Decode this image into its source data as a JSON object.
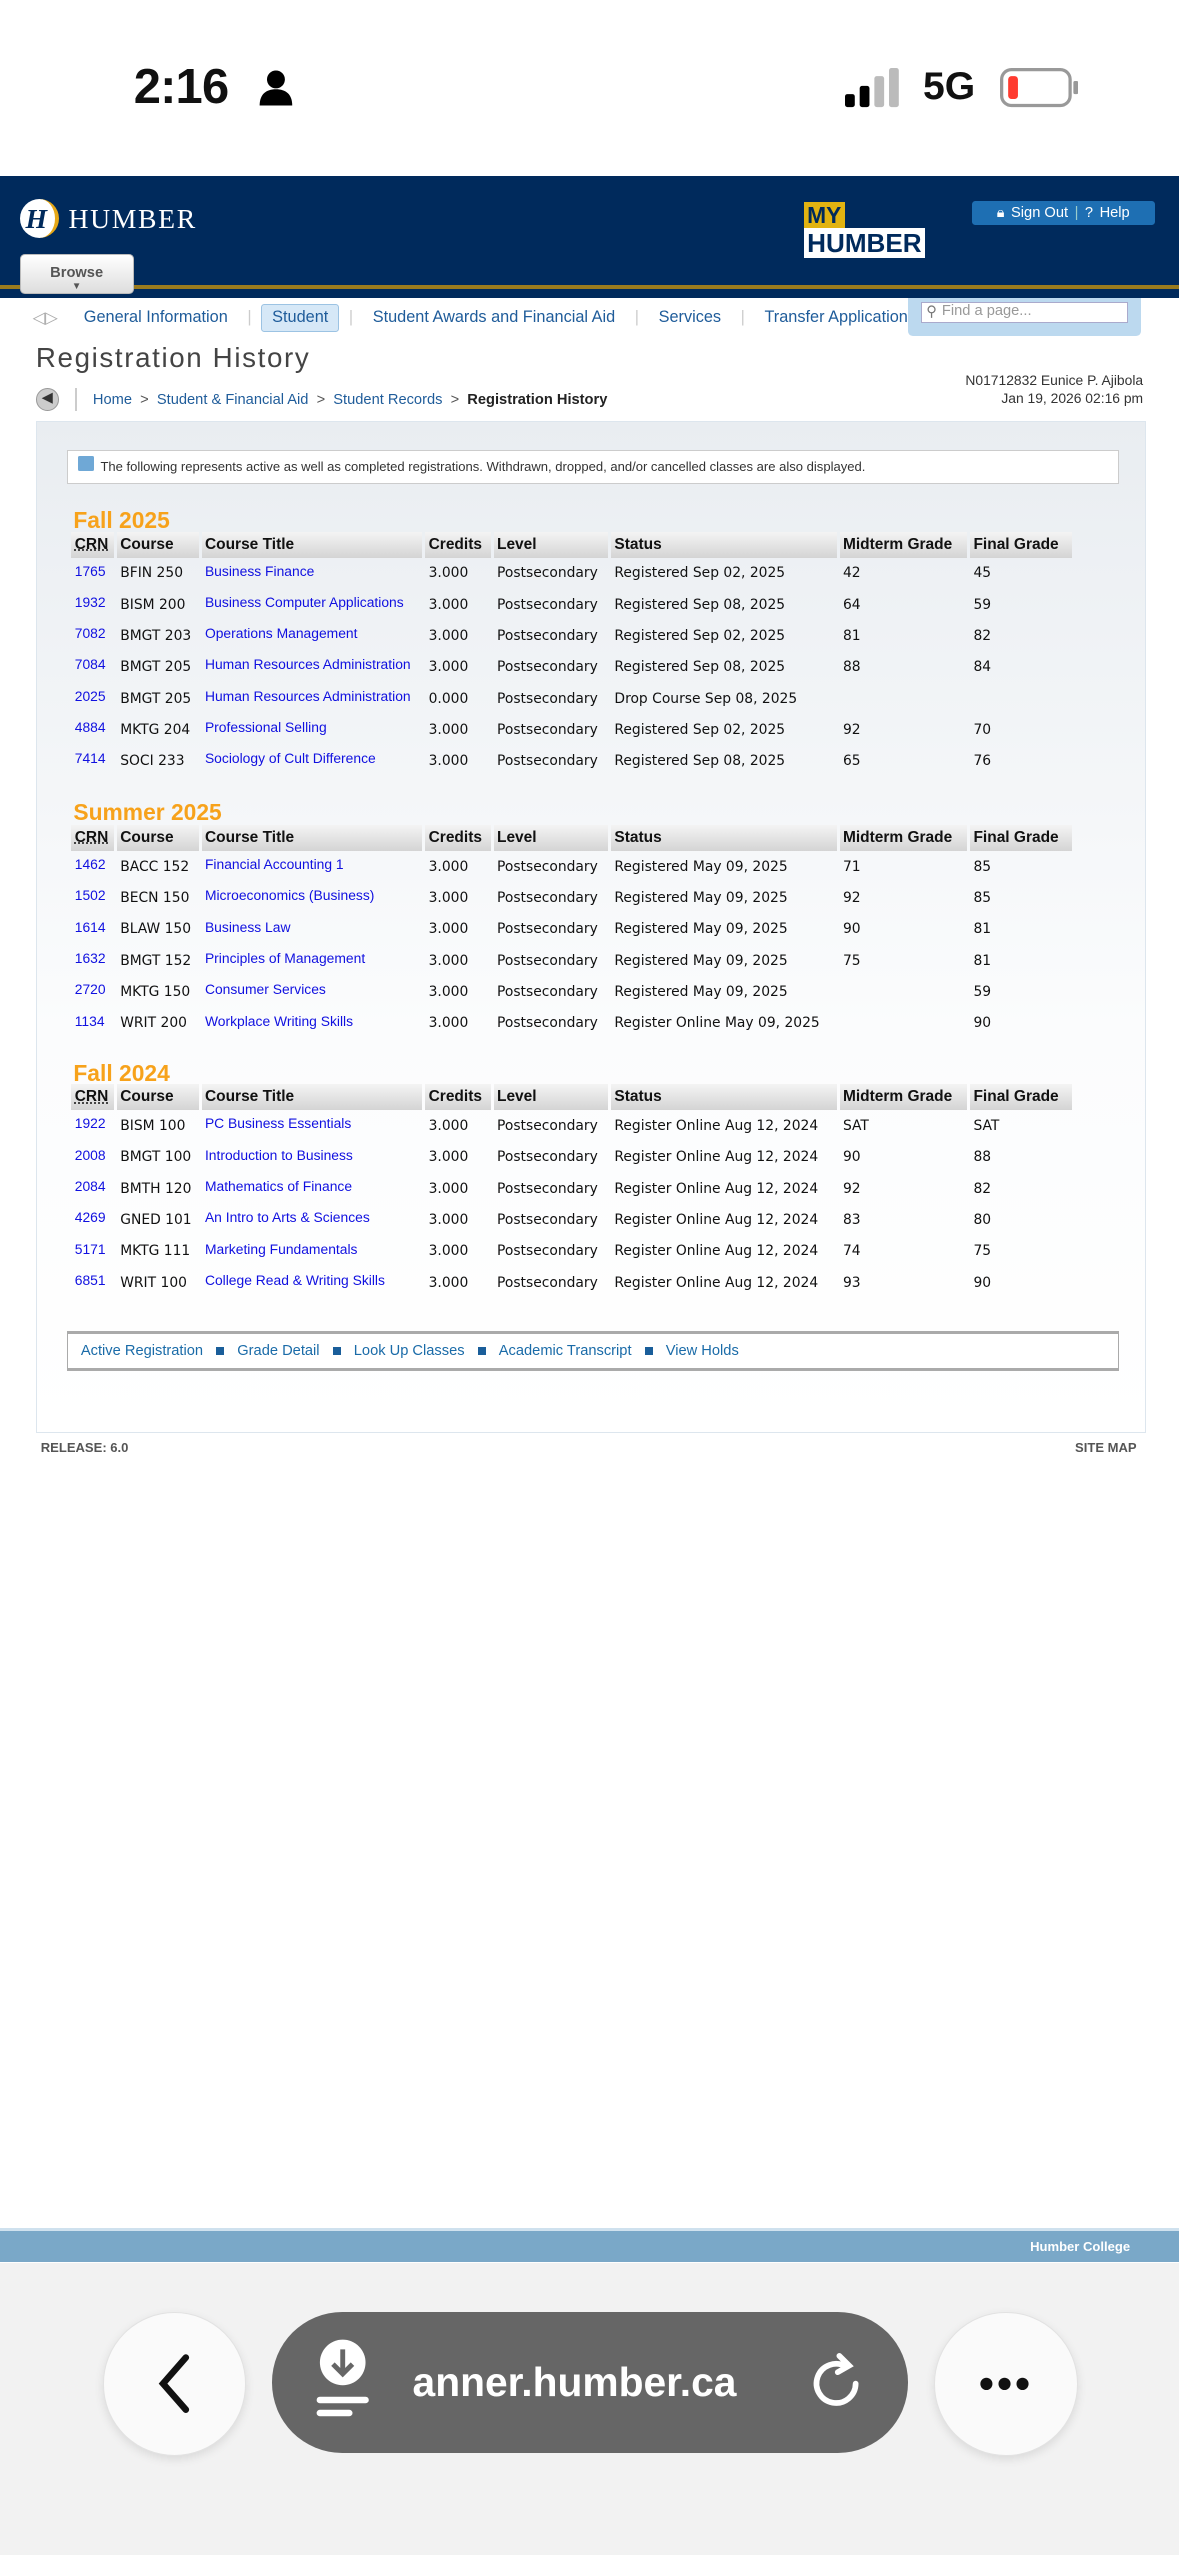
{
  "status_bar": {
    "time": "2:16",
    "network": "5G",
    "battery_level": 0.1,
    "battery_color": "#ff3b30"
  },
  "header": {
    "brand": "HUMBER",
    "browse_label": "Browse",
    "myhumber_top": "MY",
    "myhumber_bottom": "HUMBER",
    "sign_out": "Sign Out",
    "help": "Help",
    "colors": {
      "navy": "#002a5c",
      "gold": "#e2b311"
    }
  },
  "nav": {
    "items": [
      "General Information",
      "Student",
      "Student Awards and Financial Aid",
      "Services",
      "Transfer Application"
    ],
    "active": "Student",
    "search_placeholder": "Find a page..."
  },
  "page": {
    "title": "Registration History",
    "user": "N01712832 Eunice P. Ajibola",
    "datetime": "Jan 19, 2026 02:16 pm",
    "breadcrumb": [
      "Home",
      "Student & Financial Aid",
      "Student Records",
      "Registration History"
    ],
    "info": "The following represents active as well as completed registrations. Withdrawn, dropped, and/or cancelled classes are also displayed."
  },
  "columns": [
    "CRN",
    "Course",
    "Course Title",
    "Credits",
    "Level",
    "Status",
    "Midterm Grade",
    "Final Grade"
  ],
  "terms": [
    {
      "name": "Fall 2025",
      "rows": [
        [
          "1765",
          "BFIN 250",
          "Business Finance",
          "3.000",
          "Postsecondary",
          "Registered Sep 02, 2025",
          "42",
          "45"
        ],
        [
          "1932",
          "BISM 200",
          "Business Computer Applications",
          "3.000",
          "Postsecondary",
          "Registered Sep 08, 2025",
          "64",
          "59"
        ],
        [
          "7082",
          "BMGT 203",
          "Operations Management",
          "3.000",
          "Postsecondary",
          "Registered Sep 02, 2025",
          "81",
          "82"
        ],
        [
          "7084",
          "BMGT 205",
          "Human Resources Administration",
          "3.000",
          "Postsecondary",
          "Registered Sep 08, 2025",
          "88",
          "84"
        ],
        [
          "2025",
          "BMGT 205",
          "Human Resources Administration",
          "0.000",
          "Postsecondary",
          "Drop Course Sep 08, 2025",
          "",
          ""
        ],
        [
          "4884",
          "MKTG 204",
          "Professional Selling",
          "3.000",
          "Postsecondary",
          "Registered Sep 02, 2025",
          "92",
          "70"
        ],
        [
          "7414",
          "SOCI 233",
          "Sociology of Cult Difference",
          "3.000",
          "Postsecondary",
          "Registered Sep 08, 2025",
          "65",
          "76"
        ]
      ]
    },
    {
      "name": "Summer 2025",
      "rows": [
        [
          "1462",
          "BACC 152",
          "Financial Accounting 1",
          "3.000",
          "Postsecondary",
          "Registered May 09, 2025",
          "71",
          "85"
        ],
        [
          "1502",
          "BECN 150",
          "Microeconomics (Business)",
          "3.000",
          "Postsecondary",
          "Registered May 09, 2025",
          "92",
          "85"
        ],
        [
          "1614",
          "BLAW 150",
          "Business Law",
          "3.000",
          "Postsecondary",
          "Registered May 09, 2025",
          "90",
          "81"
        ],
        [
          "1632",
          "BMGT 152",
          "Principles of Management",
          "3.000",
          "Postsecondary",
          "Registered May 09, 2025",
          "75",
          "81"
        ],
        [
          "2720",
          "MKTG 150",
          "Consumer Services",
          "3.000",
          "Postsecondary",
          "Registered May 09, 2025",
          "",
          "59"
        ],
        [
          "1134",
          "WRIT 200",
          "Workplace Writing Skills",
          "3.000",
          "Postsecondary",
          "Register Online May 09, 2025",
          "",
          "90"
        ]
      ]
    },
    {
      "name": "Fall 2024",
      "rows": [
        [
          "1922",
          "BISM 100",
          "PC Business Essentials",
          "3.000",
          "Postsecondary",
          "Register Online Aug 12, 2024",
          "SAT",
          "SAT"
        ],
        [
          "2008",
          "BMGT 100",
          "Introduction to Business",
          "3.000",
          "Postsecondary",
          "Register Online Aug 12, 2024",
          "90",
          "88"
        ],
        [
          "2084",
          "BMTH 120",
          "Mathematics of Finance",
          "3.000",
          "Postsecondary",
          "Register Online Aug 12, 2024",
          "92",
          "82"
        ],
        [
          "4269",
          "GNED 101",
          "An Intro to Arts & Sciences",
          "3.000",
          "Postsecondary",
          "Register Online Aug 12, 2024",
          "83",
          "80"
        ],
        [
          "5171",
          "MKTG 111",
          "Marketing Fundamentals",
          "3.000",
          "Postsecondary",
          "Register Online Aug 12, 2024",
          "74",
          "75"
        ],
        [
          "6851",
          "WRIT 100",
          "College Read & Writing Skills",
          "3.000",
          "Postsecondary",
          "Register Online Aug 12, 2024",
          "93",
          "90"
        ]
      ]
    }
  ],
  "bottom_links": [
    "Active Registration",
    "Grade Detail",
    "Look Up Classes",
    "Academic Transcript",
    "View Holds"
  ],
  "footer": {
    "release": "RELEASE: 6.0",
    "site_map": "SITE MAP",
    "college": "Humber College"
  },
  "browser": {
    "url": "anner.humber.ca"
  }
}
